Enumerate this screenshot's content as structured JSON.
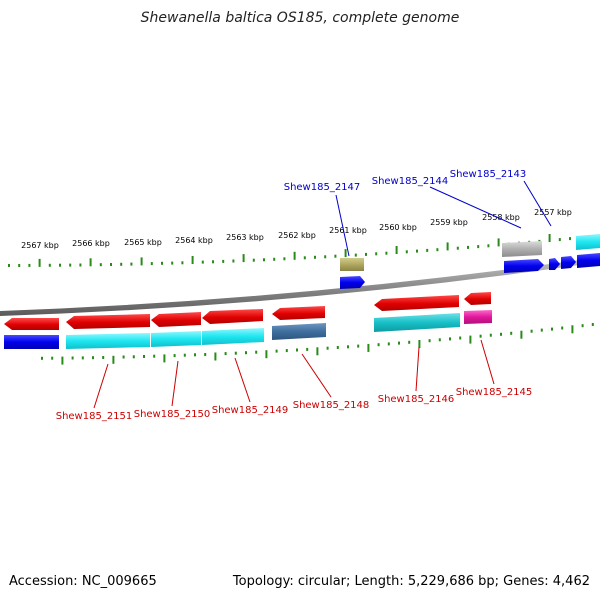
{
  "title": "Shewanella baltica OS185, complete genome",
  "footer": {
    "accession": "Accession: NC_009665",
    "summary": "Topology: circular; Length: 5,229,686 bp; Genes: 4,462"
  },
  "colors": {
    "backbone": "#8a8a8a",
    "tick": "#2a8a1a",
    "label_forward": "#0000cc",
    "label_reverse": "#cc0000"
  },
  "ticks": [
    "2567 kbp",
    "2566 kbp",
    "2565 kbp",
    "2564 kbp",
    "2563 kbp",
    "2562 kbp",
    "2561 kbp",
    "2560 kbp",
    "2559 kbp",
    "2558 kbp",
    "2557 kbp"
  ],
  "forward_labels": [
    "Shew185_2147",
    "Shew185_2144",
    "Shew185_2143"
  ],
  "reverse_labels": [
    "Shew185_2151",
    "Shew185_2150",
    "Shew185_2149",
    "Shew185_2148",
    "Shew185_2146",
    "Shew185_2145"
  ]
}
